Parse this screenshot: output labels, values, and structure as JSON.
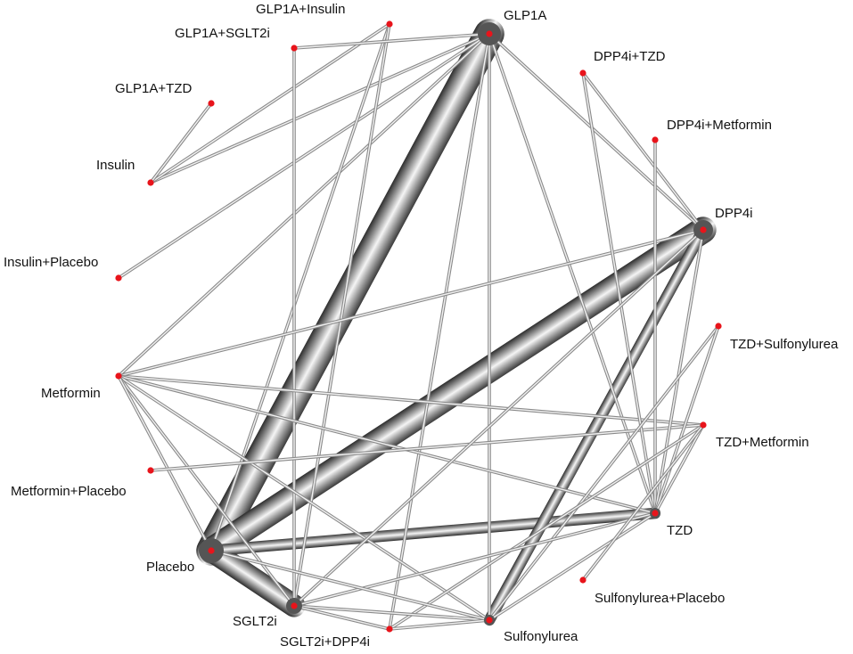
{
  "accent": {
    "node_color": "#e8141b",
    "edge_color": "#bdbdbd",
    "edge_dark": "#6e6e6e"
  },
  "nodes": {
    "glp1a": "GLP1A",
    "glp1a_insulin": "GLP1A+Insulin",
    "glp1a_sglt2i": "GLP1A+SGLT2i",
    "glp1a_tzd": "GLP1A+TZD",
    "insulin": "Insulin",
    "insulin_placebo": "Insulin+Placebo",
    "metformin": "Metformin",
    "metformin_placebo": "Metformin+Placebo",
    "placebo": "Placebo",
    "sglt2i": "SGLT2i",
    "sglt2i_dpp4i": "SGLT2i+DPP4i",
    "sulfonylurea": "Sulfonylurea",
    "sulfonylurea_placebo": "Sulfonylurea+Placebo",
    "tzd": "TZD",
    "tzd_metformin": "TZD+Metformin",
    "tzd_sulfonylurea": "TZD+Sulfonylurea",
    "dpp4i": "DPP4i",
    "dpp4i_metformin": "DPP4i+Metformin",
    "dpp4i_tzd": "DPP4i+TZD"
  },
  "edges": [
    [
      "glp1a",
      "placebo",
      8
    ],
    [
      "dpp4i",
      "placebo",
      7
    ],
    [
      "placebo",
      "sglt2i",
      6
    ],
    [
      "placebo",
      "tzd",
      3
    ],
    [
      "dpp4i",
      "sulfonylurea",
      3
    ],
    [
      "glp1a",
      "insulin",
      1
    ],
    [
      "glp1a",
      "insulin_placebo",
      1
    ],
    [
      "glp1a",
      "metformin",
      1
    ],
    [
      "glp1a",
      "sulfonylurea",
      1
    ],
    [
      "glp1a",
      "tzd",
      1
    ],
    [
      "glp1a",
      "dpp4i",
      1
    ],
    [
      "glp1a",
      "sglt2i_dpp4i",
      1
    ],
    [
      "glp1a_insulin",
      "insulin",
      1
    ],
    [
      "glp1a_insulin",
      "placebo",
      1
    ],
    [
      "glp1a_insulin",
      "sglt2i",
      1
    ],
    [
      "glp1a_tzd",
      "insulin",
      1
    ],
    [
      "glp1a_sglt2i",
      "glp1a",
      1
    ],
    [
      "glp1a_sglt2i",
      "sglt2i",
      1
    ],
    [
      "metformin",
      "dpp4i",
      1
    ],
    [
      "metformin",
      "tzd_metformin",
      1
    ],
    [
      "metformin",
      "tzd",
      1
    ],
    [
      "metformin",
      "sulfonylurea",
      1
    ],
    [
      "metformin",
      "sglt2i",
      1
    ],
    [
      "metformin",
      "placebo",
      1
    ],
    [
      "metformin_placebo",
      "tzd_metformin",
      1
    ],
    [
      "dpp4i_tzd",
      "dpp4i",
      1
    ],
    [
      "dpp4i_tzd",
      "tzd",
      1
    ],
    [
      "dpp4i_metformin",
      "tzd",
      1
    ],
    [
      "dpp4i",
      "tzd",
      1
    ],
    [
      "dpp4i",
      "sglt2i",
      1
    ],
    [
      "tzd_sulfonylurea",
      "sulfonylurea",
      1
    ],
    [
      "tzd_sulfonylurea",
      "tzd",
      1
    ],
    [
      "tzd_metformin",
      "sglt2i_dpp4i",
      1
    ],
    [
      "tzd_metformin",
      "tzd",
      1
    ],
    [
      "tzd",
      "sulfonylurea",
      1
    ],
    [
      "tzd",
      "sglt2i",
      1
    ],
    [
      "sulfonylurea_placebo",
      "tzd_metformin",
      1
    ],
    [
      "sglt2i",
      "sulfonylurea",
      1
    ],
    [
      "sglt2i",
      "sglt2i_dpp4i",
      1
    ],
    [
      "sglt2i_dpp4i",
      "sulfonylurea",
      1
    ],
    [
      "placebo",
      "sulfonylurea",
      1
    ]
  ]
}
